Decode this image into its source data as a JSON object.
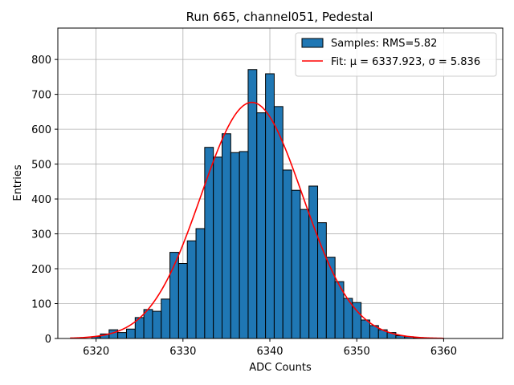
{
  "chart_data": {
    "type": "bar",
    "title": "Run 665, channel051, Pedestal",
    "xlabel": "ADC Counts",
    "ylabel": "Entries",
    "xlim": [
      6315.6,
      6366.8
    ],
    "ylim": [
      0,
      890
    ],
    "xticks": [
      6320,
      6330,
      6340,
      6350,
      6360
    ],
    "yticks": [
      0,
      100,
      200,
      300,
      400,
      500,
      600,
      700,
      800
    ],
    "grid": true,
    "legend_position": "top-right",
    "legend": {
      "samples_label": "Samples: RMS=5.82",
      "fit_label": "Fit: μ = 6337.923, σ = 5.836"
    },
    "bin_width": 1,
    "bins": [
      {
        "x": 6320,
        "count": 5
      },
      {
        "x": 6321,
        "count": 13
      },
      {
        "x": 6322,
        "count": 25
      },
      {
        "x": 6323,
        "count": 17
      },
      {
        "x": 6324,
        "count": 27
      },
      {
        "x": 6325,
        "count": 60
      },
      {
        "x": 6326,
        "count": 83
      },
      {
        "x": 6327,
        "count": 78
      },
      {
        "x": 6328,
        "count": 113
      },
      {
        "x": 6329,
        "count": 247
      },
      {
        "x": 6330,
        "count": 215
      },
      {
        "x": 6331,
        "count": 280
      },
      {
        "x": 6332,
        "count": 315
      },
      {
        "x": 6333,
        "count": 548
      },
      {
        "x": 6334,
        "count": 520
      },
      {
        "x": 6335,
        "count": 587
      },
      {
        "x": 6336,
        "count": 533
      },
      {
        "x": 6337,
        "count": 536
      },
      {
        "x": 6338,
        "count": 771
      },
      {
        "x": 6339,
        "count": 647
      },
      {
        "x": 6340,
        "count": 759
      },
      {
        "x": 6341,
        "count": 665
      },
      {
        "x": 6342,
        "count": 483
      },
      {
        "x": 6343,
        "count": 425
      },
      {
        "x": 6344,
        "count": 370
      },
      {
        "x": 6345,
        "count": 437
      },
      {
        "x": 6346,
        "count": 332
      },
      {
        "x": 6347,
        "count": 233
      },
      {
        "x": 6348,
        "count": 163
      },
      {
        "x": 6349,
        "count": 115
      },
      {
        "x": 6350,
        "count": 103
      },
      {
        "x": 6351,
        "count": 53
      },
      {
        "x": 6352,
        "count": 37
      },
      {
        "x": 6353,
        "count": 25
      },
      {
        "x": 6354,
        "count": 17
      },
      {
        "x": 6355,
        "count": 8
      },
      {
        "x": 6356,
        "count": 5
      },
      {
        "x": 6357,
        "count": 2
      },
      {
        "x": 6358,
        "count": 1
      }
    ],
    "fit": {
      "type": "gaussian",
      "mu": 6337.923,
      "sigma": 5.836,
      "amplitude": 677,
      "x_range": [
        6317,
        6360
      ]
    },
    "colors": {
      "bars": "#1f77b4",
      "bar_edge": "#000000",
      "fit_line": "#ff0000",
      "grid": "#b0b0b0"
    }
  }
}
